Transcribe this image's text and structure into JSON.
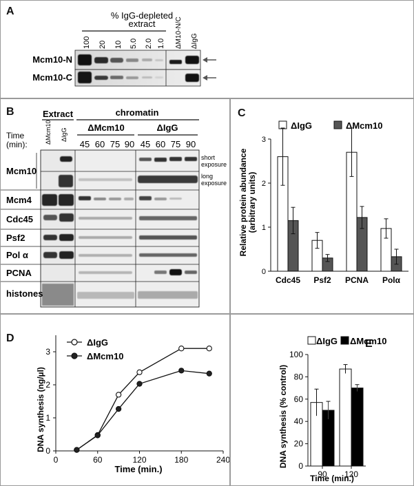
{
  "panelA": {
    "letter": "A",
    "header_line1": "% IgG-depleted",
    "header_line2": "extract",
    "lanes": [
      "100",
      "20",
      "10",
      "5.0",
      "2.0",
      "1.0",
      "ΔM10-N/C",
      "ΔIgG"
    ],
    "rows": [
      "Mcm10-N",
      "Mcm10-C"
    ]
  },
  "panelB": {
    "letter": "B",
    "extract_label": "Extract",
    "chromatin_label": "chromatin",
    "extract_lanes": [
      "ΔMcm10",
      "ΔIgG"
    ],
    "group1": "ΔMcm10",
    "group2": "ΔIgG",
    "time_label_1": "Time",
    "time_label_2": "(min):",
    "times": [
      "45",
      "60",
      "75",
      "90",
      "45",
      "60",
      "75",
      "90"
    ],
    "rows": [
      "Mcm10",
      "Mcm4",
      "Cdc45",
      "Psf2",
      "Pol α",
      "PCNA",
      "histones"
    ],
    "short_exposure": [
      "short",
      "exposure"
    ],
    "long_exposure": [
      "long",
      "exposure"
    ]
  },
  "panelC": {
    "letter": "C",
    "chart_data": {
      "type": "bar",
      "categories": [
        "Cdc45",
        "Psf2",
        "PCNA",
        "Polα"
      ],
      "series": [
        {
          "name": "ΔIgG",
          "values": [
            2.6,
            0.7,
            2.7,
            0.97
          ],
          "errors": [
            0.65,
            0.18,
            0.55,
            0.22
          ],
          "color": "#ffffff"
        },
        {
          "name": "ΔMcm10",
          "values": [
            1.15,
            0.3,
            1.22,
            0.33
          ],
          "errors": [
            0.3,
            0.08,
            0.25,
            0.17
          ],
          "color": "#555555"
        }
      ],
      "ylabel": "Relative protein abundance (arbitrary units)",
      "ylabel_line1": "Relative protein abundance",
      "ylabel_line2": "(arbitrary units)",
      "ylim": [
        0,
        3
      ],
      "yticks": [
        "0",
        "1",
        "2",
        "3"
      ],
      "legend": "top"
    }
  },
  "panelD": {
    "letter": "D",
    "chart_data": {
      "type": "line",
      "series": [
        {
          "name": "ΔIgG",
          "marker": "open-circle",
          "x": [
            30,
            60,
            90,
            120,
            180,
            220
          ],
          "y": [
            0.03,
            0.48,
            1.7,
            2.38,
            3.1,
            3.1
          ]
        },
        {
          "name": "ΔMcm10",
          "marker": "filled-circle",
          "x": [
            30,
            60,
            90,
            120,
            180,
            220
          ],
          "y": [
            0.03,
            0.47,
            1.27,
            2.03,
            2.43,
            2.34
          ]
        }
      ],
      "xlabel": "Time (min.)",
      "ylabel": "DNA synthesis (ng/µl)",
      "xlim": [
        0,
        240
      ],
      "ylim": [
        0,
        3.5
      ],
      "xticks": [
        "0",
        "60",
        "120",
        "180",
        "240"
      ],
      "yticks": [
        "0",
        "1",
        "2",
        "3"
      ],
      "legend": "top-left"
    }
  },
  "panelE": {
    "letter": "E",
    "chart_data": {
      "type": "bar",
      "categories": [
        "90",
        "120"
      ],
      "series": [
        {
          "name": "ΔIgG",
          "values": [
            57,
            87
          ],
          "errors": [
            12,
            4
          ],
          "color": "#ffffff"
        },
        {
          "name": "ΔMcm10",
          "values": [
            50,
            70
          ],
          "errors": [
            8,
            3
          ],
          "color": "#000000"
        }
      ],
      "xlabel": "Time (min.)",
      "ylabel": "DNA synthesis (% control)",
      "ylim": [
        0,
        100
      ],
      "yticks": [
        "0",
        "20",
        "40",
        "60",
        "80",
        "100"
      ],
      "legend": "top"
    }
  }
}
